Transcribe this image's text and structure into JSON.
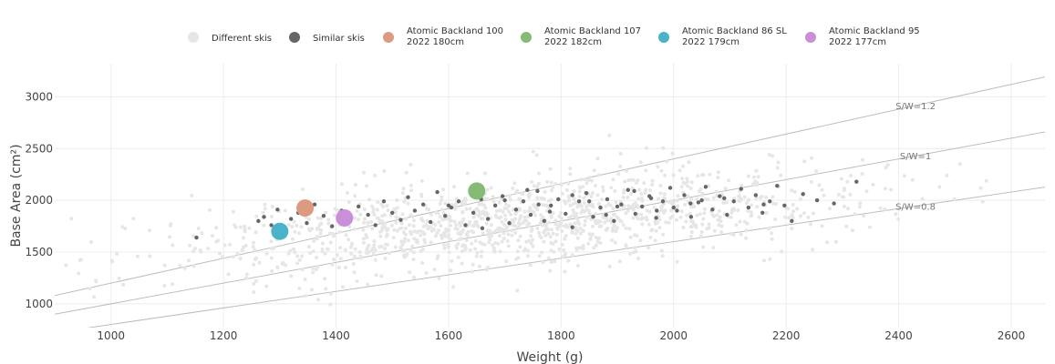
{
  "chart_data": {
    "type": "scatter",
    "xlabel": "Weight (g)",
    "ylabel": "Base Area (cm²)",
    "xlim": [
      900,
      2660
    ],
    "ylim": [
      770,
      3320
    ],
    "x_ticks": [
      1000,
      1200,
      1400,
      1600,
      1800,
      2000,
      2200,
      2400,
      2600
    ],
    "y_ticks": [
      1000,
      1500,
      2000,
      2500,
      3000
    ],
    "grid": true,
    "legend_position": "top",
    "legend": [
      {
        "label_lines": [
          "Different skis"
        ],
        "color": "#e6e6e6"
      },
      {
        "label_lines": [
          "Similar skis"
        ],
        "color": "#666666"
      },
      {
        "label_lines": [
          "Atomic Backland 100",
          "2022 180cm"
        ],
        "color": "#dc9a80"
      },
      {
        "label_lines": [
          "Atomic Backland 107",
          "2022 182cm"
        ],
        "color": "#86bb75"
      },
      {
        "label_lines": [
          "Atomic Backland 86 SL",
          "2022 179cm"
        ],
        "color": "#4ab3c9"
      },
      {
        "label_lines": [
          "Atomic Backland 95",
          "2022 177cm"
        ],
        "color": "#c98fd8"
      }
    ],
    "reference_lines": [
      {
        "label": "S/W=1.2",
        "slope": 1.2
      },
      {
        "label": "S/W=1",
        "slope": 1.0
      },
      {
        "label": "S/W=0.8",
        "slope": 0.8
      }
    ],
    "highlighted": [
      {
        "name": "Atomic Backland 100 2022 180cm",
        "x": 1345,
        "y": 1925,
        "color": "#dc9a80"
      },
      {
        "name": "Atomic Backland 107 2022 182cm",
        "x": 1650,
        "y": 2090,
        "color": "#86bb75"
      },
      {
        "name": "Atomic Backland 86 SL 2022 179cm",
        "x": 1300,
        "y": 1700,
        "color": "#4ab3c9"
      },
      {
        "name": "Atomic Backland 95 2022 177cm",
        "x": 1415,
        "y": 1830,
        "color": "#c98fd8"
      }
    ],
    "similar_skis": [
      [
        1152,
        1640
      ],
      [
        1262,
        1800
      ],
      [
        1272,
        1840
      ],
      [
        1285,
        1760
      ],
      [
        1296,
        1910
      ],
      [
        1320,
        1820
      ],
      [
        1333,
        1880
      ],
      [
        1348,
        1780
      ],
      [
        1362,
        1960
      ],
      [
        1378,
        1850
      ],
      [
        1393,
        1750
      ],
      [
        1410,
        1900
      ],
      [
        1425,
        1810
      ],
      [
        1440,
        1940
      ],
      [
        1457,
        1860
      ],
      [
        1470,
        1760
      ],
      [
        1485,
        1990
      ],
      [
        1500,
        1880
      ],
      [
        1515,
        1810
      ],
      [
        1528,
        2030
      ],
      [
        1540,
        1900
      ],
      [
        1555,
        1960
      ],
      [
        1568,
        1790
      ],
      [
        1580,
        2080
      ],
      [
        1594,
        1850
      ],
      [
        1605,
        1930
      ],
      [
        1618,
        1990
      ],
      [
        1630,
        1760
      ],
      [
        1644,
        1880
      ],
      [
        1658,
        2010
      ],
      [
        1670,
        1820
      ],
      [
        1683,
        1950
      ],
      [
        1696,
        2040
      ],
      [
        1708,
        1780
      ],
      [
        1720,
        1910
      ],
      [
        1733,
        1990
      ],
      [
        1746,
        1860
      ],
      [
        1758,
        2090
      ],
      [
        1770,
        1800
      ],
      [
        1782,
        1950
      ],
      [
        1795,
        2010
      ],
      [
        1808,
        1870
      ],
      [
        1820,
        1740
      ],
      [
        1832,
        1990
      ],
      [
        1845,
        2070
      ],
      [
        1857,
        1840
      ],
      [
        1870,
        1930
      ],
      [
        1882,
        2010
      ],
      [
        1894,
        1800
      ],
      [
        1907,
        1960
      ],
      [
        1919,
        2100
      ],
      [
        1932,
        1870
      ],
      [
        1944,
        1940
      ],
      [
        1957,
        2040
      ],
      [
        1969,
        1830
      ],
      [
        1981,
        1990
      ],
      [
        1994,
        2120
      ],
      [
        2006,
        1900
      ],
      [
        2019,
        2050
      ],
      [
        2031,
        1840
      ],
      [
        2044,
        1980
      ],
      [
        2057,
        2130
      ],
      [
        2069,
        1910
      ],
      [
        2082,
        2040
      ],
      [
        2095,
        1860
      ],
      [
        2107,
        1990
      ],
      [
        2120,
        2110
      ],
      [
        2133,
        1930
      ],
      [
        2146,
        2050
      ],
      [
        2158,
        1880
      ],
      [
        2171,
        1990
      ],
      [
        2184,
        2140
      ],
      [
        2197,
        1950
      ],
      [
        2210,
        1800
      ],
      [
        2230,
        2060
      ],
      [
        2255,
        2000
      ],
      [
        2285,
        1970
      ],
      [
        2325,
        2180
      ],
      [
        1740,
        2100
      ],
      [
        1820,
        2050
      ],
      [
        1880,
        1860
      ],
      [
        1960,
        2020
      ],
      [
        2030,
        1970
      ],
      [
        1600,
        1950
      ],
      [
        1660,
        1730
      ],
      [
        1760,
        1960
      ],
      [
        1850,
        1990
      ],
      [
        1930,
        2090
      ],
      [
        2000,
        1930
      ],
      [
        2090,
        2020
      ],
      [
        2160,
        1960
      ],
      [
        1700,
        2000
      ],
      [
        1780,
        1890
      ],
      [
        1900,
        1940
      ],
      [
        1970,
        1900
      ],
      [
        2050,
        2000
      ]
    ]
  }
}
